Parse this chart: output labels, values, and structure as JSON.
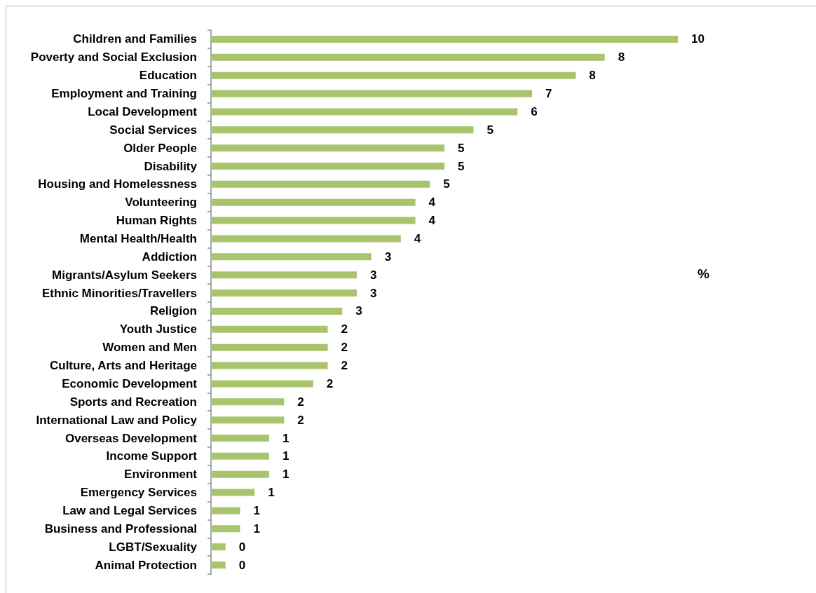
{
  "chart_data": {
    "type": "bar",
    "orientation": "horizontal",
    "xlabel": "%",
    "tick_labels": "y",
    "color": "#a9c46c",
    "categories": [
      "Children and Families",
      "Poverty and Social Exclusion",
      "Education",
      "Employment and Training",
      "Local Development",
      "Social Services",
      "Older People",
      "Disability",
      "Housing and Homelessness",
      "Volunteering",
      "Human Rights",
      "Mental Health/Health",
      "Addiction",
      "Migrants/Asylum Seekers",
      "Ethnic Minorities/Travellers",
      "Religion",
      "Youth Justice",
      "Women and Men",
      "Culture, Arts and Heritage",
      "Economic Development",
      "Sports and Recreation",
      "International Law and Policy",
      "Overseas Development",
      "Income Support",
      "Environment",
      "Emergency Services",
      "Law and Legal Services",
      "Business and Professional",
      "LGBT/Sexuality",
      "Animal Protection"
    ],
    "values": [
      9.64,
      8.13,
      7.53,
      6.63,
      6.33,
      5.42,
      4.82,
      4.82,
      4.52,
      4.22,
      4.22,
      3.92,
      3.31,
      3.01,
      3.01,
      2.71,
      2.41,
      2.41,
      2.41,
      2.11,
      1.51,
      1.51,
      1.2,
      1.2,
      1.2,
      0.9,
      0.6,
      0.6,
      0.3,
      0.3
    ],
    "value_labels": [
      "10",
      "8",
      "8",
      "7",
      "6",
      "5",
      "5",
      "5",
      "5",
      "4",
      "4",
      "4",
      "3",
      "3",
      "3",
      "3",
      "2",
      "2",
      "2",
      "2",
      "2",
      "2",
      "1",
      "1",
      "1",
      "1",
      "1",
      "1",
      "0",
      "0"
    ]
  }
}
